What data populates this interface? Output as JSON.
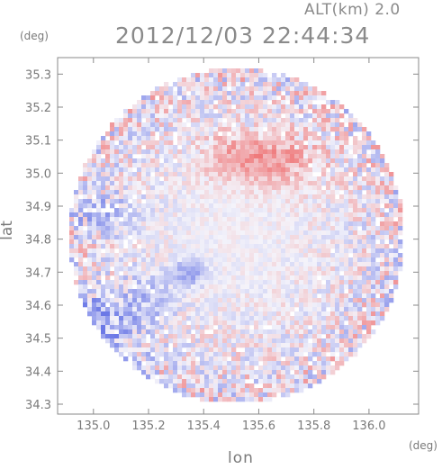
{
  "header": {
    "altitude": "ALT(km)  2.0",
    "timestamp": "2012/12/03 22:44:34"
  },
  "chart_data": {
    "type": "heatmap",
    "title": "2012/12/03 22:44:34",
    "xlabel": "lon",
    "ylabel": "lat",
    "x_unit": "(deg)",
    "y_unit": "(deg)",
    "xlim": [
      134.87,
      136.18
    ],
    "ylim": [
      34.27,
      35.35
    ],
    "x_ticks": [
      135.0,
      135.2,
      135.4,
      135.6,
      135.8,
      136.0
    ],
    "x_tick_labels": [
      "135.0",
      "135.2",
      "135.4",
      "135.6",
      "135.8",
      "136.0"
    ],
    "y_ticks": [
      34.3,
      34.4,
      34.5,
      34.6,
      34.7,
      34.8,
      34.9,
      35.0,
      35.1,
      35.2,
      35.3
    ],
    "y_tick_labels": [
      "34.3",
      "34.4",
      "34.5",
      "34.6",
      "34.7",
      "34.8",
      "34.9",
      "35.0",
      "35.1",
      "35.2",
      "35.3"
    ],
    "radar_center": {
      "lon": 135.52,
      "lat": 34.81
    },
    "colors": {
      "approaching": "#6b78e6",
      "receding": "#ee5b5b",
      "neutral": "#f4f3fa"
    },
    "regions": [
      {
        "lon": 135.65,
        "lat": 35.04,
        "r_lon": 0.16,
        "r_lat": 0.08,
        "value": 0.55
      },
      {
        "lon": 135.48,
        "lat": 35.05,
        "r_lon": 0.1,
        "r_lat": 0.06,
        "value": 0.35
      },
      {
        "lon": 134.98,
        "lat": 34.5,
        "r_lon": 0.16,
        "r_lat": 0.13,
        "value": -0.75
      },
      {
        "lon": 135.03,
        "lat": 34.88,
        "r_lon": 0.14,
        "r_lat": 0.06,
        "value": -0.4
      },
      {
        "lon": 135.35,
        "lat": 34.7,
        "r_lon": 0.06,
        "r_lat": 0.04,
        "value": -0.65
      },
      {
        "lon": 135.2,
        "lat": 34.62,
        "r_lon": 0.1,
        "r_lat": 0.08,
        "value": -0.35
      }
    ]
  }
}
